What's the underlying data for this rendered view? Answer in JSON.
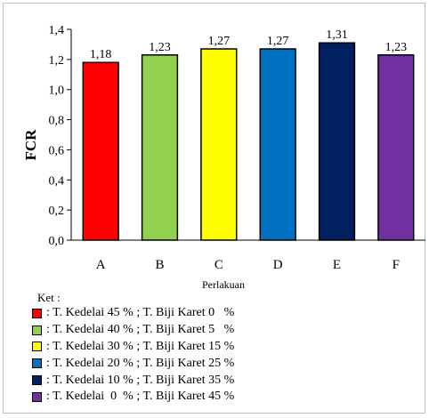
{
  "chart_data": {
    "type": "bar",
    "categories": [
      "A",
      "B",
      "C",
      "D",
      "E",
      "F"
    ],
    "values": [
      1.18,
      1.23,
      1.27,
      1.27,
      1.31,
      1.23
    ],
    "data_labels": [
      "1,18",
      "1,23",
      "1,27",
      "1,27",
      "1,31",
      "1,23"
    ],
    "colors": [
      "#ff0000",
      "#92d050",
      "#ffff00",
      "#0070c0",
      "#002060",
      "#7030a0"
    ],
    "ylim": [
      0,
      1.4
    ],
    "yticks": [
      0,
      0.2,
      0.4,
      0.6,
      0.8,
      1.0,
      1.2,
      1.4
    ],
    "ytick_labels": [
      "0,0",
      "0,2",
      "0,4",
      "0,6",
      "0,8",
      "1,0",
      "1,2",
      "1,4"
    ],
    "xlabel": "Perlakuan",
    "ylabel": "FCR",
    "grid": false
  },
  "legend": {
    "title": "Ket :",
    "items": [
      {
        "label": ": T. Kedelai 45 % ; T. Biji Karet 0   %",
        "color": "#ff0000"
      },
      {
        "label": ": T. Kedelai 40 % ; T. Biji Karet 5   %",
        "color": "#92d050"
      },
      {
        "label": ": T. Kedelai 30 % ; T. Biji Karet 15 %",
        "color": "#ffff00"
      },
      {
        "label": ": T. Kedelai 20 % ; T. Biji Karet 25 %",
        "color": "#0070c0"
      },
      {
        "label": ": T. Kedelai 10 % ; T. Biji Karet 35 %",
        "color": "#002060"
      },
      {
        "label": ": T. Kedelai  0  % ; T. Biji Karet 45 %",
        "color": "#7030a0"
      }
    ]
  }
}
